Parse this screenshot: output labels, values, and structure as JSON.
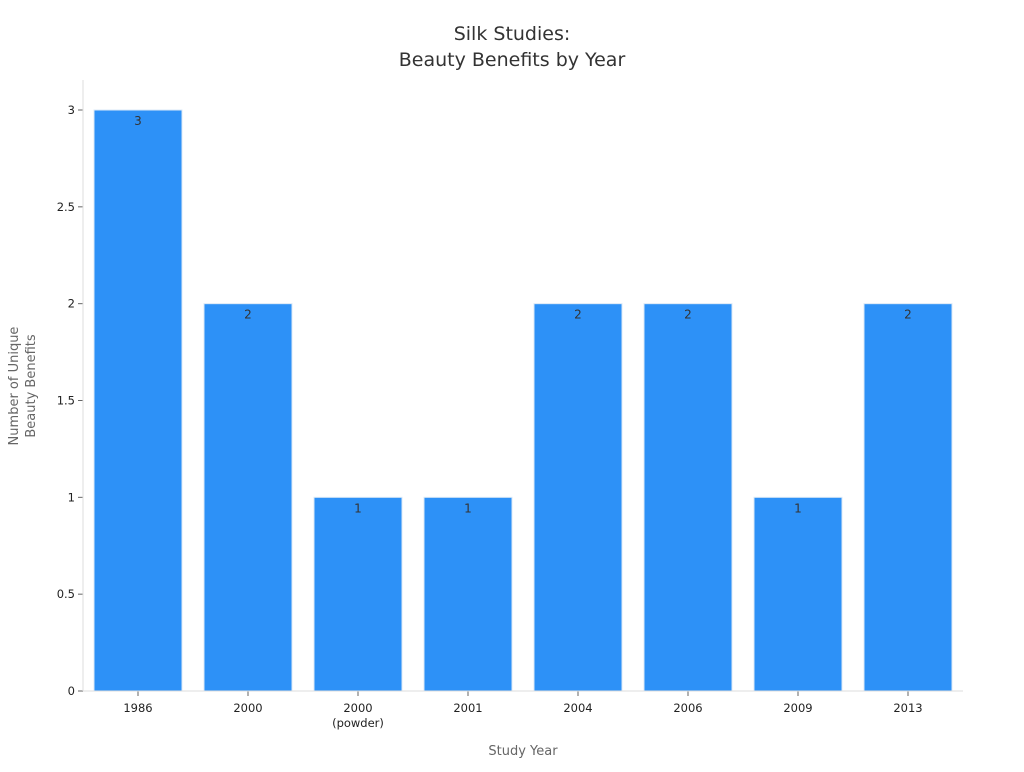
{
  "chart_data": {
    "type": "bar",
    "title": [
      "Silk Studies:",
      "Beauty Benefits by Year"
    ],
    "xlabel": "Study Year",
    "ylabel": [
      "Number of Unique",
      "Beauty Benefits"
    ],
    "categories": [
      [
        "1986"
      ],
      [
        "2000"
      ],
      [
        "2000",
        "(powder)"
      ],
      [
        "2001"
      ],
      [
        "2004"
      ],
      [
        "2006"
      ],
      [
        "2009"
      ],
      [
        "2013"
      ]
    ],
    "values": [
      3,
      2,
      1,
      1,
      2,
      2,
      1,
      2
    ],
    "data_labels": [
      "3",
      "2",
      "1",
      "1",
      "2",
      "2",
      "1",
      "2"
    ],
    "ylim": [
      0,
      3
    ],
    "yticks": [
      0,
      0.5,
      1,
      1.5,
      2,
      2.5,
      3
    ],
    "ytick_labels": [
      "0",
      "0.5",
      "1",
      "1.5",
      "2",
      "2.5",
      "3"
    ],
    "grid": false,
    "legend": "none",
    "bar_color": "#2d91f7"
  }
}
